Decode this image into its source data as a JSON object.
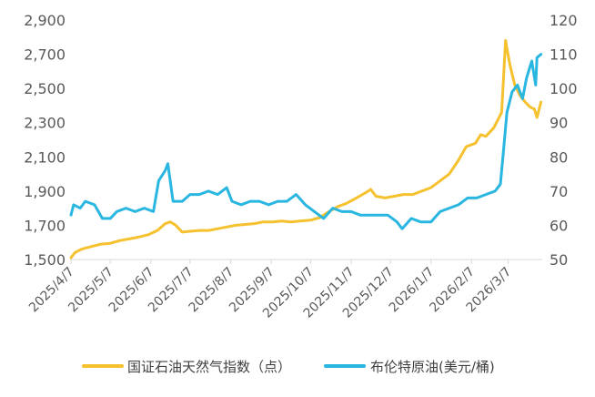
{
  "chart_data": {
    "type": "line",
    "x_tick_labels": [
      "2025/4/7",
      "2025/5/7",
      "2025/6/7",
      "2025/7/7",
      "2025/8/7",
      "2025/9/7",
      "2025/10/7",
      "2025/11/7",
      "2025/12/7",
      "2026/1/7",
      "2026/2/7",
      "2026/3/7"
    ],
    "y_left": {
      "ticks": [
        "1,500",
        "1,700",
        "1,900",
        "2,100",
        "2,300",
        "2,500",
        "2,700",
        "2,900"
      ],
      "min": 1500,
      "max": 2900
    },
    "y_right": {
      "ticks": [
        "50",
        "60",
        "70",
        "80",
        "90",
        "100",
        "110",
        "120"
      ],
      "min": 50,
      "max": 120
    },
    "grid": false,
    "legend_position": "bottom",
    "series": [
      {
        "name": "国证石油天然气指数（点）",
        "axis": "left",
        "color": "#F5C12E",
        "points": [
          [
            "2025/4/7",
            1510
          ],
          [
            "2025/4/10",
            1540
          ],
          [
            "2025/4/15",
            1560
          ],
          [
            "2025/4/22",
            1575
          ],
          [
            "2025/4/30",
            1590
          ],
          [
            "2025/5/7",
            1595
          ],
          [
            "2025/5/14",
            1610
          ],
          [
            "2025/5/21",
            1620
          ],
          [
            "2025/5/28",
            1630
          ],
          [
            "2025/6/5",
            1645
          ],
          [
            "2025/6/12",
            1670
          ],
          [
            "2025/6/18",
            1710
          ],
          [
            "2025/6/22",
            1720
          ],
          [
            "2025/6/26",
            1700
          ],
          [
            "2025/7/1",
            1660
          ],
          [
            "2025/7/7",
            1665
          ],
          [
            "2025/7/14",
            1670
          ],
          [
            "2025/7/21",
            1670
          ],
          [
            "2025/7/28",
            1680
          ],
          [
            "2025/8/4",
            1690
          ],
          [
            "2025/8/11",
            1700
          ],
          [
            "2025/8/18",
            1705
          ],
          [
            "2025/8/25",
            1710
          ],
          [
            "2025/9/1",
            1720
          ],
          [
            "2025/9/8",
            1720
          ],
          [
            "2025/9/15",
            1725
          ],
          [
            "2025/9/22",
            1720
          ],
          [
            "2025/9/29",
            1725
          ],
          [
            "2025/10/7",
            1730
          ],
          [
            "2025/10/14",
            1745
          ],
          [
            "2025/10/21",
            1780
          ],
          [
            "2025/10/28",
            1810
          ],
          [
            "2025/11/4",
            1830
          ],
          [
            "2025/11/11",
            1860
          ],
          [
            "2025/11/18",
            1890
          ],
          [
            "2025/11/22",
            1910
          ],
          [
            "2025/11/26",
            1870
          ],
          [
            "2025/12/3",
            1860
          ],
          [
            "2025/12/10",
            1870
          ],
          [
            "2025/12/17",
            1880
          ],
          [
            "2025/12/24",
            1880
          ],
          [
            "2025/12/31",
            1900
          ],
          [
            "2026/1/7",
            1920
          ],
          [
            "2026/1/14",
            1960
          ],
          [
            "2026/1/21",
            2000
          ],
          [
            "2026/1/28",
            2080
          ],
          [
            "2026/2/3",
            2160
          ],
          [
            "2026/2/10",
            2180
          ],
          [
            "2026/2/14",
            2230
          ],
          [
            "2026/2/18",
            2220
          ],
          [
            "2026/2/24",
            2270
          ],
          [
            "2026/3/2",
            2360
          ],
          [
            "2026/3/5",
            2780
          ],
          [
            "2026/3/8",
            2650
          ],
          [
            "2026/3/12",
            2520
          ],
          [
            "2026/3/16",
            2460
          ],
          [
            "2026/3/20",
            2420
          ],
          [
            "2026/3/24",
            2390
          ],
          [
            "2026/3/27",
            2380
          ],
          [
            "2026/3/29",
            2330
          ],
          [
            "2026/4/1",
            2420
          ]
        ]
      },
      {
        "name": "布伦特原油(美元/桶)",
        "axis": "right",
        "color": "#29B6E0",
        "points": [
          [
            "2025/4/7",
            63
          ],
          [
            "2025/4/9",
            66
          ],
          [
            "2025/4/14",
            65
          ],
          [
            "2025/4/18",
            67
          ],
          [
            "2025/4/25",
            66
          ],
          [
            "2025/5/1",
            62
          ],
          [
            "2025/5/7",
            62
          ],
          [
            "2025/5/12",
            64
          ],
          [
            "2025/5/19",
            65
          ],
          [
            "2025/5/26",
            64
          ],
          [
            "2025/6/2",
            65
          ],
          [
            "2025/6/9",
            64
          ],
          [
            "2025/6/13",
            73
          ],
          [
            "2025/6/18",
            76
          ],
          [
            "2025/6/20",
            78
          ],
          [
            "2025/6/24",
            67
          ],
          [
            "2025/7/1",
            67
          ],
          [
            "2025/7/7",
            69
          ],
          [
            "2025/7/14",
            69
          ],
          [
            "2025/7/21",
            70
          ],
          [
            "2025/7/28",
            69
          ],
          [
            "2025/8/4",
            71
          ],
          [
            "2025/8/8",
            67
          ],
          [
            "2025/8/15",
            66
          ],
          [
            "2025/8/22",
            67
          ],
          [
            "2025/8/29",
            67
          ],
          [
            "2025/9/5",
            66
          ],
          [
            "2025/9/12",
            67
          ],
          [
            "2025/9/19",
            67
          ],
          [
            "2025/9/26",
            69
          ],
          [
            "2025/10/3",
            66
          ],
          [
            "2025/10/10",
            64
          ],
          [
            "2025/10/17",
            62
          ],
          [
            "2025/10/24",
            65
          ],
          [
            "2025/10/31",
            64
          ],
          [
            "2025/11/7",
            64
          ],
          [
            "2025/11/14",
            63
          ],
          [
            "2025/11/21",
            63
          ],
          [
            "2025/11/28",
            63
          ],
          [
            "2025/12/5",
            63
          ],
          [
            "2025/12/12",
            61
          ],
          [
            "2025/12/16",
            59
          ],
          [
            "2025/12/23",
            62
          ],
          [
            "2025/12/30",
            61
          ],
          [
            "2026/1/7",
            61
          ],
          [
            "2026/1/14",
            64
          ],
          [
            "2026/1/21",
            65
          ],
          [
            "2026/1/28",
            66
          ],
          [
            "2026/2/4",
            68
          ],
          [
            "2026/2/11",
            68
          ],
          [
            "2026/2/18",
            69
          ],
          [
            "2026/2/25",
            70
          ],
          [
            "2026/3/1",
            72
          ],
          [
            "2026/3/3",
            80
          ],
          [
            "2026/3/6",
            93
          ],
          [
            "2026/3/10",
            99
          ],
          [
            "2026/3/14",
            101
          ],
          [
            "2026/3/18",
            97
          ],
          [
            "2026/3/21",
            103
          ],
          [
            "2026/3/25",
            108
          ],
          [
            "2026/3/28",
            101
          ],
          [
            "2026/3/29",
            109
          ],
          [
            "2026/4/1",
            110
          ]
        ]
      }
    ]
  }
}
